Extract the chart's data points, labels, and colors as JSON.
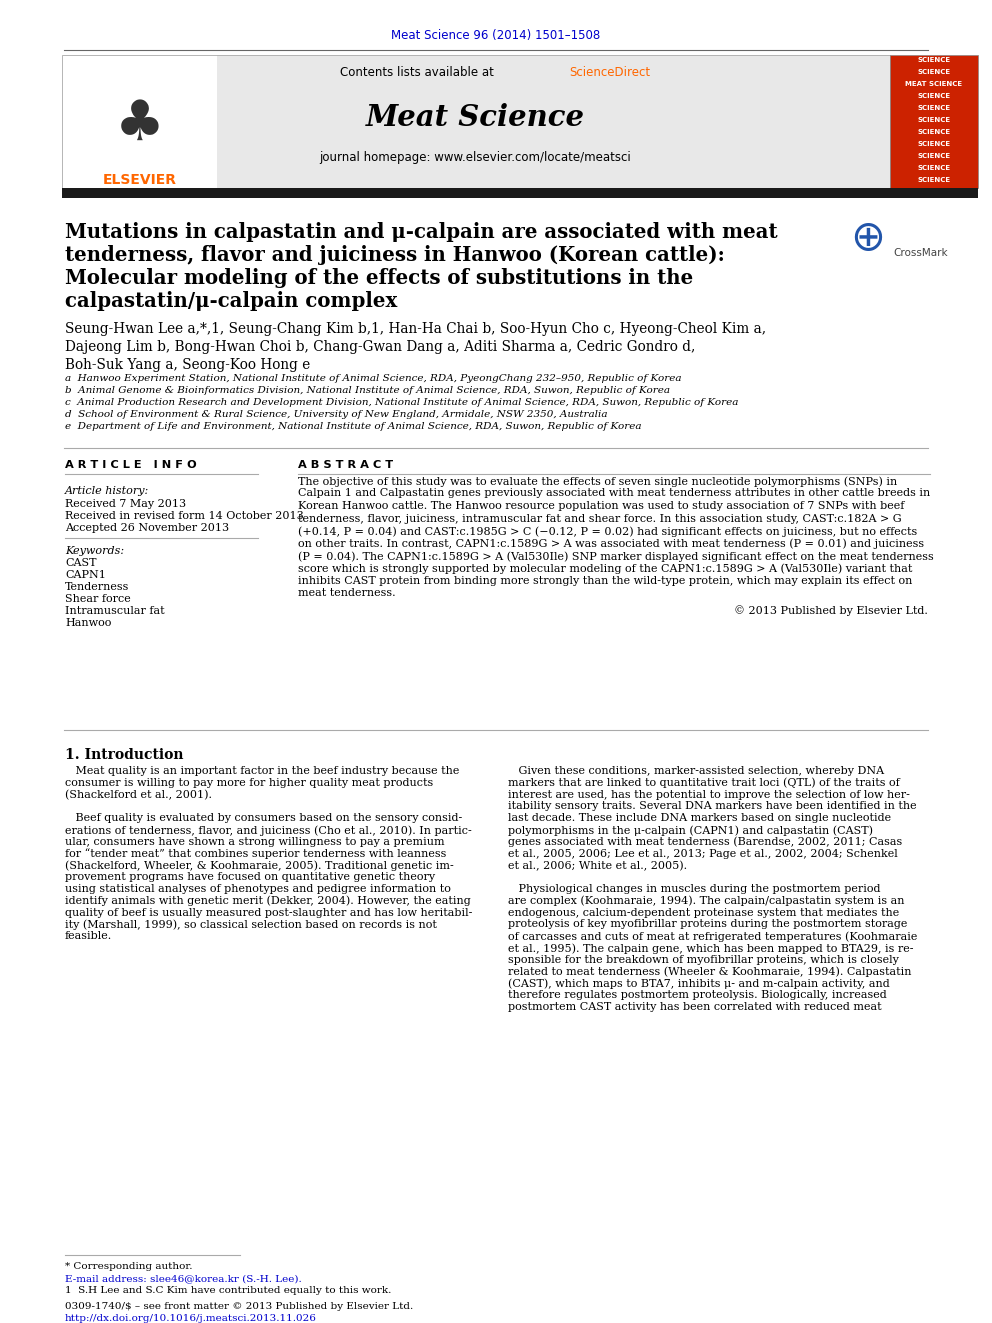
{
  "page_bg": "#ffffff",
  "top_journal_ref": "Meat Science 96 (2014) 1501–1508",
  "top_journal_ref_color": "#0000cc",
  "header_bg": "#e8e8e8",
  "journal_name": "Meat Science",
  "journal_homepage": "journal homepage: www.elsevier.com/locate/meatsci",
  "thick_bar_color": "#1a1a1a",
  "title_line1": "Mutations in calpastatin and μ-calpain are associated with meat",
  "title_line2": "tenderness, flavor and juiciness in Hanwoo (Korean cattle):",
  "title_line3": "Molecular modeling of the effects of substitutions in the",
  "title_line4": "calpastatin/μ-calpain complex",
  "authors_line1": "Seung-Hwan Lee a,*,1, Seung-Chang Kim b,1, Han-Ha Chai b, Soo-Hyun Cho c, Hyeong-Cheol Kim a,",
  "authors_line2": "Dajeong Lim b, Bong-Hwan Choi b, Chang-Gwan Dang a, Aditi Sharma a, Cedric Gondro d,",
  "authors_line3": "Boh-Suk Yang a, Seong-Koo Hong e",
  "affil_a": "a  Hanwoo Experiment Station, National Institute of Animal Science, RDA, PyeongChang 232–950, Republic of Korea",
  "affil_b": "b  Animal Genome & Bioinformatics Division, National Institute of Animal Science, RDA, Suwon, Republic of Korea",
  "affil_c": "c  Animal Production Research and Development Division, National Institute of Animal Science, RDA, Suwon, Republic of Korea",
  "affil_d": "d  School of Environment & Rural Science, University of New England, Armidale, NSW 2350, Australia",
  "affil_e": "e  Department of Life and Environment, National Institute of Animal Science, RDA, Suwon, Republic of Korea",
  "article_info_header": "A R T I C L E   I N F O",
  "article_history_header": "Article history:",
  "received1": "Received 7 May 2013",
  "received2": "Received in revised form 14 October 2013",
  "accepted": "Accepted 26 November 2013",
  "keywords_header": "Keywords:",
  "keywords": [
    "CAST",
    "CAPN1",
    "Tenderness",
    "Shear force",
    "Intramuscular fat",
    "Hanwoo"
  ],
  "abstract_header": "A B S T R A C T",
  "abstract_lines": [
    "The objective of this study was to evaluate the effects of seven single nucleotide polymorphisms (SNPs) in",
    "Calpain 1 and Calpastatin genes previously associated with meat tenderness attributes in other cattle breeds in",
    "Korean Hanwoo cattle. The Hanwoo resource population was used to study association of 7 SNPs with beef",
    "tenderness, flavor, juiciness, intramuscular fat and shear force. In this association study, CAST:c.182A > G",
    "(+0.14, P = 0.04) and CAST:c.1985G > C (−0.12, P = 0.02) had significant effects on juiciness, but no effects",
    "on other traits. In contrast, CAPN1:c.1589G > A was associated with meat tenderness (P = 0.01) and juiciness",
    "(P = 0.04). The CAPN1:c.1589G > A (Val530Ile) SNP marker displayed significant effect on the meat tenderness",
    "score which is strongly supported by molecular modeling of the CAPN1:c.1589G > A (Val530Ile) variant that",
    "inhibits CAST protein from binding more strongly than the wild-type protein, which may explain its effect on",
    "meat tenderness."
  ],
  "copyright": "© 2013 Published by Elsevier Ltd.",
  "intro_header": "1. Introduction",
  "intro_col1_lines": [
    "   Meat quality is an important factor in the beef industry because the",
    "consumer is willing to pay more for higher quality meat products",
    "(Shackelford et al., 2001).",
    "",
    "   Beef quality is evaluated by consumers based on the sensory consid-",
    "erations of tenderness, flavor, and juiciness (Cho et al., 2010). In partic-",
    "ular, consumers have shown a strong willingness to pay a premium",
    "for “tender meat” that combines superior tenderness with leanness",
    "(Shackelford, Wheeler, & Koohmaraie, 2005). Traditional genetic im-",
    "provement programs have focused on quantitative genetic theory",
    "using statistical analyses of phenotypes and pedigree information to",
    "identify animals with genetic merit (Dekker, 2004). However, the eating",
    "quality of beef is usually measured post-slaughter and has low heritabil-",
    "ity (Marshall, 1999), so classical selection based on records is not",
    "feasible."
  ],
  "intro_col2_lines": [
    "   Given these conditions, marker-assisted selection, whereby DNA",
    "markers that are linked to quantitative trait loci (QTL) of the traits of",
    "interest are used, has the potential to improve the selection of low her-",
    "itability sensory traits. Several DNA markers have been identified in the",
    "last decade. These include DNA markers based on single nucleotide",
    "polymorphisms in the μ-calpain (CAPN1) and calpastatin (CAST)",
    "genes associated with meat tenderness (Barendse, 2002, 2011; Casas",
    "et al., 2005, 2006; Lee et al., 2013; Page et al., 2002, 2004; Schenkel",
    "et al., 2006; White et al., 2005).",
    "",
    "   Physiological changes in muscles during the postmortem period",
    "are complex (Koohmaraie, 1994). The calpain/calpastatin system is an",
    "endogenous, calcium-dependent proteinase system that mediates the",
    "proteolysis of key myofibrillar proteins during the postmortem storage",
    "of carcasses and cuts of meat at refrigerated temperatures (Koohmaraie",
    "et al., 1995). The calpain gene, which has been mapped to BTA29, is re-",
    "sponsible for the breakdown of myofibrillar proteins, which is closely",
    "related to meat tenderness (Wheeler & Koohmaraie, 1994). Calpastatin",
    "(CAST), which maps to BTA7, inhibits μ- and m-calpain activity, and",
    "therefore regulates postmortem proteolysis. Biologically, increased",
    "postmortem CAST activity has been correlated with reduced meat"
  ],
  "footnote_star": "* Corresponding author.",
  "footnote_email": "E-mail address: slee46@korea.kr (S.-H. Lee).",
  "footnote_1": "1  S.H Lee and S.C Kim have contributed equally to this work.",
  "footer_line1": "0309-1740/$ – see front matter © 2013 Published by Elsevier Ltd.",
  "footer_line2": "http://dx.doi.org/10.1016/j.meatsci.2013.11.026",
  "footer_color": "#0000cc",
  "sup_color": "#0000cc",
  "link_color": "#0000cc"
}
